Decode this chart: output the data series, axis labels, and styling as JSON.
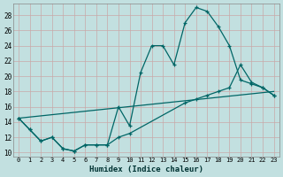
{
  "title": "",
  "xlabel": "Humidex (Indice chaleur)",
  "ylabel": "",
  "background_color": "#c2e0e0",
  "grid_color": "#d8ecec",
  "line_color": "#006666",
  "xlim": [
    -0.5,
    23.5
  ],
  "ylim": [
    9.5,
    29.5
  ],
  "xticks": [
    0,
    1,
    2,
    3,
    4,
    5,
    6,
    7,
    8,
    9,
    10,
    11,
    12,
    13,
    14,
    15,
    16,
    17,
    18,
    19,
    20,
    21,
    22,
    23
  ],
  "yticks": [
    10,
    12,
    14,
    16,
    18,
    20,
    22,
    24,
    26,
    28
  ],
  "series1_x": [
    0,
    1,
    2,
    3,
    4,
    5,
    6,
    7,
    8,
    9,
    10,
    11,
    12,
    13,
    14,
    15,
    16,
    17,
    18,
    19,
    20,
    21,
    22,
    23
  ],
  "series1_y": [
    14.5,
    13.0,
    11.5,
    12.0,
    10.5,
    10.2,
    11.0,
    11.0,
    11.0,
    16.0,
    13.5,
    20.5,
    24.0,
    24.0,
    21.5,
    27.0,
    29.0,
    28.5,
    26.5,
    24.0,
    19.5,
    19.0,
    18.5,
    17.5
  ],
  "series2_x": [
    0,
    1,
    2,
    3,
    4,
    5,
    6,
    7,
    8,
    9,
    10,
    15,
    16,
    17,
    18,
    19,
    20,
    21,
    22,
    23
  ],
  "series2_y": [
    14.5,
    13.0,
    11.5,
    12.0,
    10.5,
    10.2,
    11.0,
    11.0,
    11.0,
    12.0,
    12.5,
    16.5,
    17.0,
    17.5,
    18.0,
    18.5,
    21.5,
    19.2,
    18.5,
    17.5
  ],
  "series3_x": [
    0,
    23
  ],
  "series3_y": [
    14.5,
    18.0
  ]
}
